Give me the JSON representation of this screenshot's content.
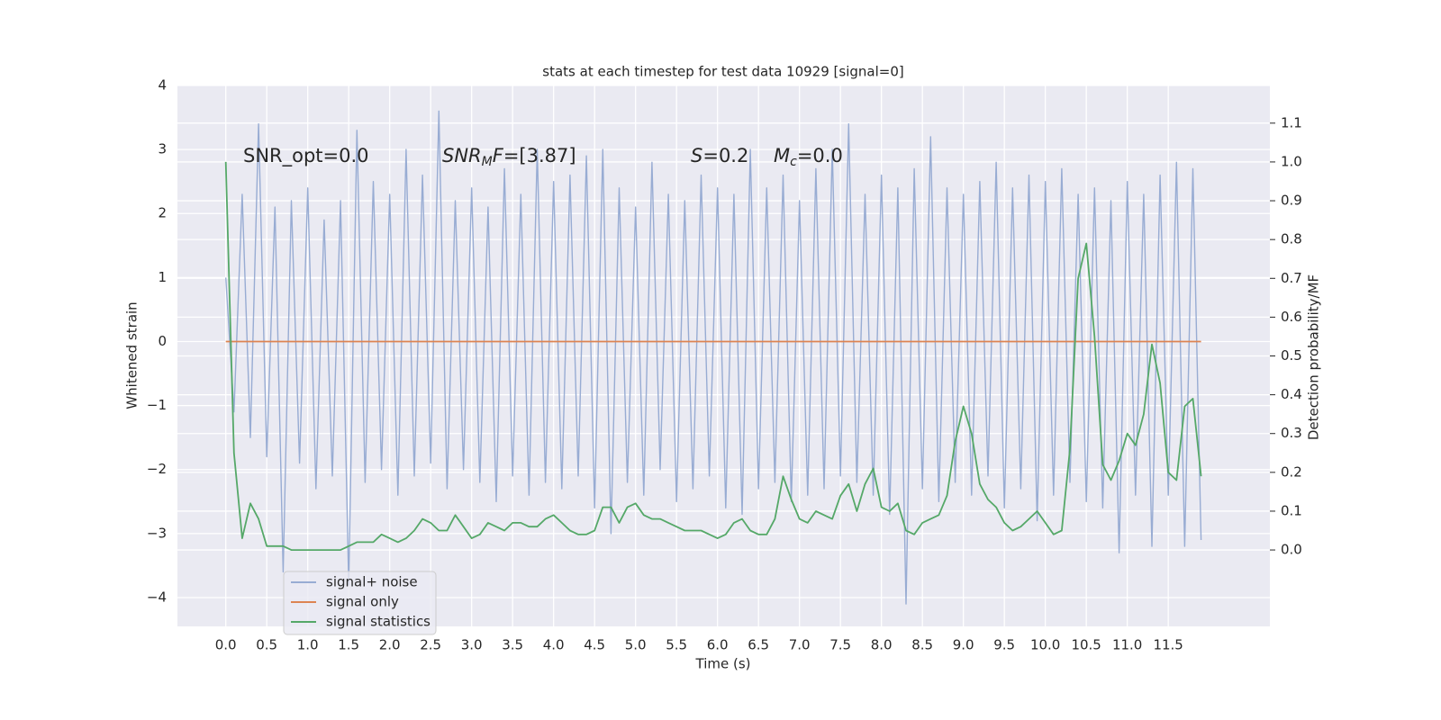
{
  "chart_data": {
    "type": "line",
    "title": "stats at each timestep for test data 10929 [signal=0]",
    "xlabel": "Time (s)",
    "ylabel": "Whitened strain",
    "y2label": "Detection probability/MF",
    "grid": true,
    "legend": "lower left",
    "annotations": [
      {
        "parts": [
          {
            "text": "SNR_opt=0.0",
            "style": "normal"
          }
        ]
      },
      {
        "parts": [
          {
            "text": "SNR",
            "style": "italic"
          },
          {
            "text": "M",
            "style": "sub"
          },
          {
            "text": "F",
            "style": "italic"
          },
          {
            "text": "=[3.87]",
            "style": "normal"
          }
        ]
      },
      {
        "parts": [
          {
            "text": "S",
            "style": "italic"
          },
          {
            "text": "=0.2",
            "style": "normal"
          }
        ]
      },
      {
        "parts": [
          {
            "text": "M",
            "style": "italic"
          },
          {
            "text": "c",
            "style": "sub"
          },
          {
            "text": "=0.0",
            "style": "normal"
          }
        ]
      }
    ],
    "xlim": [
      -0.59,
      12.74
    ],
    "ylim": [
      -4.45,
      4
    ],
    "y2lim": [
      -0.197,
      1.197
    ],
    "xticks": [
      {
        "value": 0,
        "label": "0.0"
      },
      0.5,
      {
        "value": 1,
        "label": "1.0"
      },
      1.5,
      {
        "value": 2,
        "label": "2.0"
      },
      2.5,
      {
        "value": 3,
        "label": "3.0"
      },
      3.5,
      {
        "value": 4,
        "label": "4.0"
      },
      4.5,
      {
        "value": 5,
        "label": "5.0"
      },
      5.5,
      {
        "value": 6,
        "label": "6.0"
      },
      6.5,
      {
        "value": 7,
        "label": "7.0"
      },
      7.5,
      {
        "value": 8,
        "label": "8.0"
      },
      8.5,
      {
        "value": 9,
        "label": "9.0"
      },
      9.5,
      {
        "value": 10,
        "label": "10.0"
      },
      10.5,
      {
        "value": 11,
        "label": "11.0"
      },
      11.5
    ],
    "yticks": [
      {
        "value": -4,
        "label": "−4"
      },
      {
        "value": -3,
        "label": "−3"
      },
      {
        "value": -2,
        "label": "−2"
      },
      {
        "value": -1,
        "label": "−1"
      },
      0,
      1,
      2,
      3,
      4
    ],
    "y2ticks": [
      {
        "value": 0,
        "label": "0.0"
      },
      0.1,
      0.2,
      0.3,
      0.4,
      0.5,
      0.6,
      0.7,
      0.8,
      0.9,
      {
        "value": 1,
        "label": "1.0"
      },
      1.1
    ],
    "x": [
      0.0,
      0.1,
      0.2,
      0.3,
      0.4,
      0.5,
      0.6,
      0.7,
      0.8,
      0.9,
      1.0,
      1.1,
      1.2,
      1.3,
      1.4,
      1.5,
      1.6,
      1.7,
      1.8,
      1.9,
      2.0,
      2.1,
      2.2,
      2.3,
      2.4,
      2.5,
      2.6,
      2.7,
      2.8,
      2.9,
      3.0,
      3.1,
      3.2,
      3.3,
      3.4,
      3.5,
      3.6,
      3.7,
      3.8,
      3.9,
      4.0,
      4.1,
      4.2,
      4.3,
      4.4,
      4.5,
      4.6,
      4.7,
      4.8,
      4.9,
      5.0,
      5.1,
      5.2,
      5.3,
      5.4,
      5.5,
      5.6,
      5.7,
      5.8,
      5.9,
      6.0,
      6.1,
      6.2,
      6.3,
      6.4,
      6.5,
      6.6,
      6.7,
      6.8,
      6.9,
      7.0,
      7.1,
      7.2,
      7.3,
      7.4,
      7.5,
      7.6,
      7.7,
      7.8,
      7.9,
      8.0,
      8.1,
      8.2,
      8.3,
      8.4,
      8.5,
      8.6,
      8.7,
      8.8,
      8.9,
      9.0,
      9.1,
      9.2,
      9.3,
      9.4,
      9.5,
      9.6,
      9.7,
      9.8,
      9.9,
      10.0,
      10.1,
      10.2,
      10.3,
      10.4,
      10.5,
      10.6,
      10.7,
      10.8,
      10.9,
      11.0,
      11.1,
      11.2,
      11.3,
      11.4,
      11.5,
      11.6,
      11.7,
      11.8,
      11.9
    ],
    "series": [
      {
        "name": "signal+ noise",
        "color": "#98acd3",
        "axis": "y",
        "values": [
          1.0,
          -1.1,
          2.3,
          -1.5,
          3.4,
          -1.8,
          2.1,
          -3.6,
          2.2,
          -1.9,
          2.4,
          -2.3,
          1.9,
          -2.1,
          2.2,
          -3.8,
          3.3,
          -2.2,
          2.5,
          -2.0,
          2.3,
          -2.4,
          3.0,
          -2.1,
          2.6,
          -1.9,
          3.6,
          -2.3,
          2.2,
          -2.0,
          2.4,
          -2.2,
          2.1,
          -2.5,
          2.7,
          -2.1,
          2.3,
          -2.4,
          3.0,
          -2.2,
          2.5,
          -2.3,
          2.6,
          -2.1,
          2.9,
          -2.6,
          3.0,
          -3.0,
          2.4,
          -2.2,
          2.1,
          -2.4,
          2.8,
          -2.0,
          2.3,
          -2.5,
          2.2,
          -2.3,
          2.6,
          -2.1,
          2.4,
          -2.6,
          2.3,
          -2.7,
          3.0,
          -2.3,
          2.4,
          -2.2,
          2.6,
          -2.5,
          2.2,
          -2.4,
          2.7,
          -2.3,
          3.0,
          -2.1,
          3.4,
          -2.2,
          2.3,
          -2.4,
          2.6,
          -2.7,
          2.4,
          -4.1,
          2.7,
          -2.3,
          3.2,
          -2.5,
          2.4,
          -2.2,
          2.3,
          -2.4,
          2.5,
          -2.1,
          2.8,
          -2.6,
          2.4,
          -2.3,
          2.6,
          -2.8,
          2.5,
          -2.4,
          2.7,
          -2.2,
          2.3,
          -2.5,
          2.4,
          -2.6,
          2.2,
          -3.3,
          2.5,
          -2.4,
          2.3,
          -3.2,
          2.6,
          -2.4,
          2.8,
          -3.2,
          2.7,
          -3.1
        ]
      },
      {
        "name": "signal only",
        "color": "#dd8452",
        "axis": "y",
        "values": [
          0,
          0,
          0,
          0,
          0,
          0,
          0,
          0,
          0,
          0,
          0,
          0,
          0,
          0,
          0,
          0,
          0,
          0,
          0,
          0,
          0,
          0,
          0,
          0,
          0,
          0,
          0,
          0,
          0,
          0,
          0,
          0,
          0,
          0,
          0,
          0,
          0,
          0,
          0,
          0,
          0,
          0,
          0,
          0,
          0,
          0,
          0,
          0,
          0,
          0,
          0,
          0,
          0,
          0,
          0,
          0,
          0,
          0,
          0,
          0,
          0,
          0,
          0,
          0,
          0,
          0,
          0,
          0,
          0,
          0,
          0,
          0,
          0,
          0,
          0,
          0,
          0,
          0,
          0,
          0,
          0,
          0,
          0,
          0,
          0,
          0,
          0,
          0,
          0,
          0,
          0,
          0,
          0,
          0,
          0,
          0,
          0,
          0,
          0,
          0,
          0,
          0,
          0,
          0,
          0,
          0,
          0,
          0,
          0,
          0,
          0,
          0,
          0,
          0,
          0,
          0,
          0,
          0,
          0,
          0
        ]
      },
      {
        "name": "signal statistics",
        "color": "#55a868",
        "axis": "y2",
        "values": [
          1.0,
          0.25,
          0.03,
          0.12,
          0.08,
          0.01,
          0.01,
          0.01,
          0.0,
          0.0,
          0.0,
          0.0,
          0.0,
          0.0,
          0.0,
          0.01,
          0.02,
          0.02,
          0.02,
          0.04,
          0.03,
          0.02,
          0.03,
          0.05,
          0.08,
          0.07,
          0.05,
          0.05,
          0.09,
          0.06,
          0.03,
          0.04,
          0.07,
          0.06,
          0.05,
          0.07,
          0.07,
          0.06,
          0.06,
          0.08,
          0.09,
          0.07,
          0.05,
          0.04,
          0.04,
          0.05,
          0.11,
          0.11,
          0.07,
          0.11,
          0.12,
          0.09,
          0.08,
          0.08,
          0.07,
          0.06,
          0.05,
          0.05,
          0.05,
          0.04,
          0.03,
          0.04,
          0.07,
          0.08,
          0.05,
          0.04,
          0.04,
          0.08,
          0.19,
          0.13,
          0.08,
          0.07,
          0.1,
          0.09,
          0.08,
          0.14,
          0.17,
          0.1,
          0.17,
          0.21,
          0.11,
          0.1,
          0.12,
          0.05,
          0.04,
          0.07,
          0.08,
          0.09,
          0.14,
          0.28,
          0.37,
          0.3,
          0.17,
          0.13,
          0.11,
          0.07,
          0.05,
          0.06,
          0.08,
          0.1,
          0.07,
          0.04,
          0.05,
          0.26,
          0.7,
          0.79,
          0.55,
          0.22,
          0.18,
          0.23,
          0.3,
          0.27,
          0.35,
          0.53,
          0.43,
          0.2,
          0.18,
          0.37,
          0.39,
          0.19
        ]
      }
    ]
  }
}
